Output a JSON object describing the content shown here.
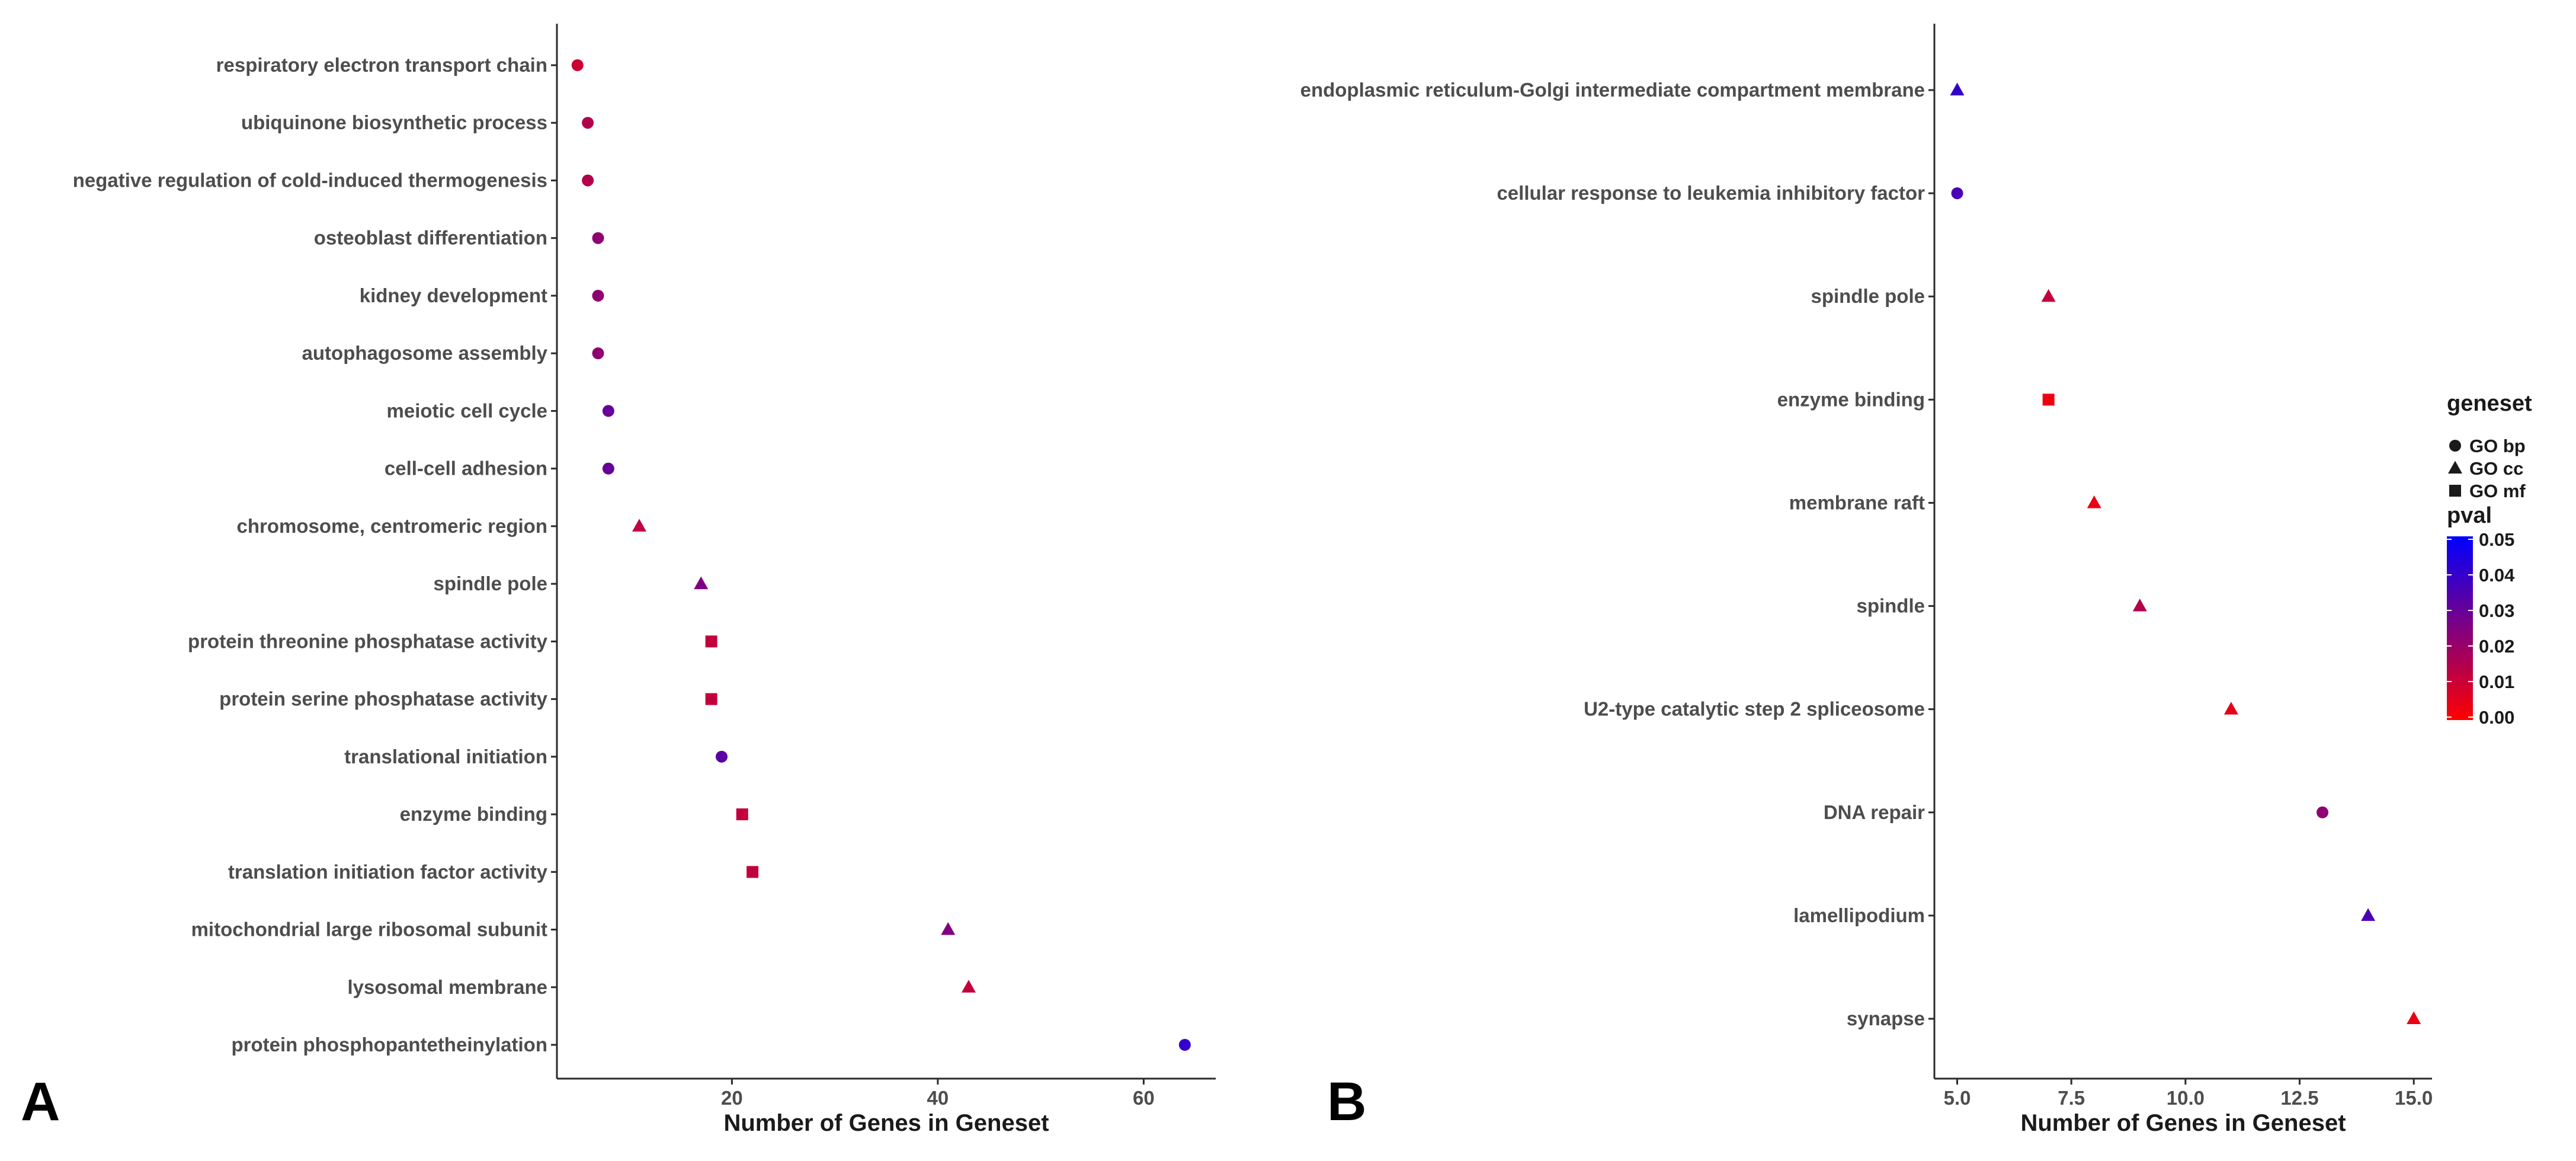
{
  "chart_data": [
    {
      "type": "scatter",
      "panel_label": "A",
      "xlabel": "Number of Genes in Geneset",
      "ylabel": "",
      "xlim": [
        3,
        67
      ],
      "xticks": [
        20,
        40,
        60
      ],
      "xtick_labels": [
        "20",
        "40",
        "60"
      ],
      "grid": false,
      "points": [
        {
          "term": "respiratory electron transport chain",
          "genes": 5,
          "geneset": "GO bp",
          "pval": 0.01
        },
        {
          "term": "ubiquinone biosynthetic process",
          "genes": 6,
          "geneset": "GO bp",
          "pval": 0.015
        },
        {
          "term": "negative regulation of cold-induced thermogenesis",
          "genes": 6,
          "geneset": "GO bp",
          "pval": 0.015
        },
        {
          "term": "osteoblast differentiation",
          "genes": 7,
          "geneset": "GO bp",
          "pval": 0.022
        },
        {
          "term": "kidney development",
          "genes": 7,
          "geneset": "GO bp",
          "pval": 0.022
        },
        {
          "term": "autophagosome assembly",
          "genes": 7,
          "geneset": "GO bp",
          "pval": 0.022
        },
        {
          "term": "meiotic cell cycle",
          "genes": 8,
          "geneset": "GO bp",
          "pval": 0.03
        },
        {
          "term": "cell-cell adhesion",
          "genes": 8,
          "geneset": "GO bp",
          "pval": 0.03
        },
        {
          "term": "chromosome, centromeric region",
          "genes": 11,
          "geneset": "GO cc",
          "pval": 0.012
        },
        {
          "term": "spindle pole",
          "genes": 17,
          "geneset": "GO cc",
          "pval": 0.025
        },
        {
          "term": "protein threonine phosphatase activity",
          "genes": 18,
          "geneset": "GO mf",
          "pval": 0.012
        },
        {
          "term": "protein serine phosphatase activity",
          "genes": 18,
          "geneset": "GO mf",
          "pval": 0.012
        },
        {
          "term": "translational initiation",
          "genes": 19,
          "geneset": "GO bp",
          "pval": 0.032
        },
        {
          "term": "enzyme binding",
          "genes": 21,
          "geneset": "GO mf",
          "pval": 0.012
        },
        {
          "term": "translation initiation factor activity",
          "genes": 22,
          "geneset": "GO mf",
          "pval": 0.012
        },
        {
          "term": "mitochondrial large ribosomal subunit",
          "genes": 41,
          "geneset": "GO cc",
          "pval": 0.025
        },
        {
          "term": "lysosomal membrane",
          "genes": 43,
          "geneset": "GO cc",
          "pval": 0.012
        },
        {
          "term": "protein phosphopantetheinylation",
          "genes": 64,
          "geneset": "GO bp",
          "pval": 0.04
        }
      ]
    },
    {
      "type": "scatter",
      "panel_label": "B",
      "xlabel": "Number of Genes in Geneset",
      "ylabel": "",
      "xlim": [
        4.5,
        15.4
      ],
      "xticks": [
        5,
        7.5,
        10,
        12.5,
        15
      ],
      "xtick_labels": [
        "5.0",
        "7.5",
        "10.0",
        "12.5",
        "15.0"
      ],
      "grid": false,
      "points": [
        {
          "term": "endoplasmic reticulum-Golgi intermediate compartment membrane",
          "genes": 5,
          "geneset": "GO cc",
          "pval": 0.04
        },
        {
          "term": "cellular response to leukemia inhibitory factor",
          "genes": 5,
          "geneset": "GO bp",
          "pval": 0.035
        },
        {
          "term": "spindle pole",
          "genes": 7,
          "geneset": "GO cc",
          "pval": 0.012
        },
        {
          "term": "enzyme binding",
          "genes": 7,
          "geneset": "GO mf",
          "pval": 0.003
        },
        {
          "term": "membrane raft",
          "genes": 8,
          "geneset": "GO cc",
          "pval": 0.004
        },
        {
          "term": "spindle",
          "genes": 9,
          "geneset": "GO cc",
          "pval": 0.015
        },
        {
          "term": "U2-type catalytic step 2 spliceosome",
          "genes": 11,
          "geneset": "GO cc",
          "pval": 0.005
        },
        {
          "term": "DNA repair",
          "genes": 13,
          "geneset": "GO bp",
          "pval": 0.022
        },
        {
          "term": "lamellipodium",
          "genes": 14,
          "geneset": "GO cc",
          "pval": 0.035
        },
        {
          "term": "synapse",
          "genes": 15,
          "geneset": "GO cc",
          "pval": 0.004
        }
      ]
    }
  ],
  "legend": {
    "shape_title": "geneset",
    "shape_items": [
      {
        "label": "GO bp",
        "shape": "circle"
      },
      {
        "label": "GO cc",
        "shape": "triangle"
      },
      {
        "label": "GO mf",
        "shape": "square"
      }
    ],
    "color_title": "pval",
    "color_ticks": [
      "0.05",
      "0.04",
      "0.03",
      "0.02",
      "0.01",
      "0.00"
    ],
    "color_low": "#ff0000",
    "color_high": "#0000ff",
    "pval_max": 0.05
  },
  "colors": {
    "axis": "#2b2b2b",
    "label": "#4d4d4d",
    "title": "#1a1a1a"
  }
}
